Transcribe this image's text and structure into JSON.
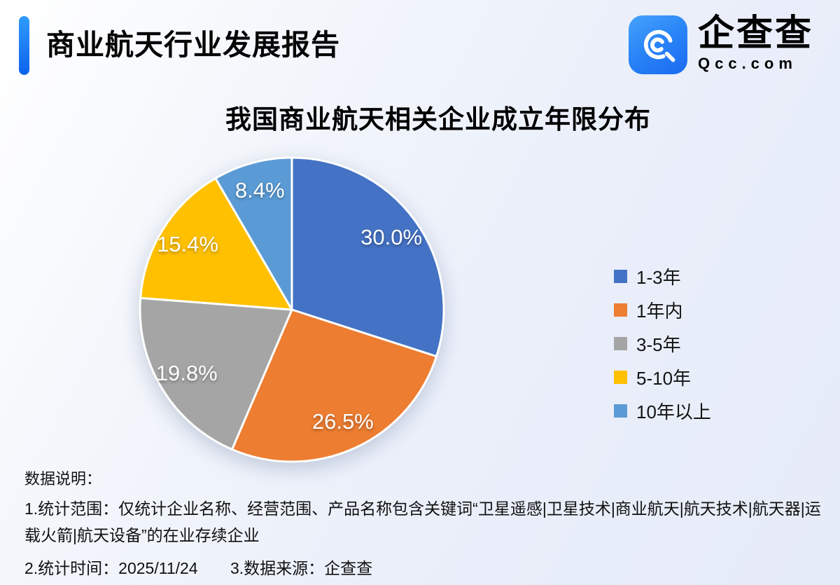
{
  "header": {
    "title": "商业航天行业发展报告",
    "accent_color": "#1677f7",
    "logo": {
      "icon_name": "qcc-logo-icon",
      "icon_color": "#2b86f7",
      "brand_name": "企查查",
      "brand_domain": "Qcc.com"
    }
  },
  "chart_data": {
    "type": "pie",
    "title": "我国商业航天相关企业成立年限分布",
    "start_angle_deg": 0,
    "direction": "clockwise",
    "legend_position": "right",
    "label_format": "percent",
    "slices": [
      {
        "label": "1-3年",
        "value": 30.0,
        "display": "30.0%",
        "color": "#4472C4"
      },
      {
        "label": "1年内",
        "value": 26.5,
        "display": "26.5%",
        "color": "#ED7D31"
      },
      {
        "label": "3-5年",
        "value": 19.8,
        "display": "19.8%",
        "color": "#A5A5A5"
      },
      {
        "label": "5-10年",
        "value": 15.4,
        "display": "15.4%",
        "color": "#FFC000"
      },
      {
        "label": "10年以上",
        "value": 8.4,
        "display": "8.4%",
        "color": "#5B9BD5"
      }
    ]
  },
  "footer": {
    "heading": "数据说明：",
    "note_scope": "1.统计范围：仅统计企业名称、经营范围、产品名称包含关键词“卫星遥感|卫星技术|商业航天|航天技术|航天器|运载火箭|航天设备”的在业存续企业",
    "note_date": "2.统计时间：2025/11/24",
    "note_source": "3.数据来源：企查查"
  }
}
